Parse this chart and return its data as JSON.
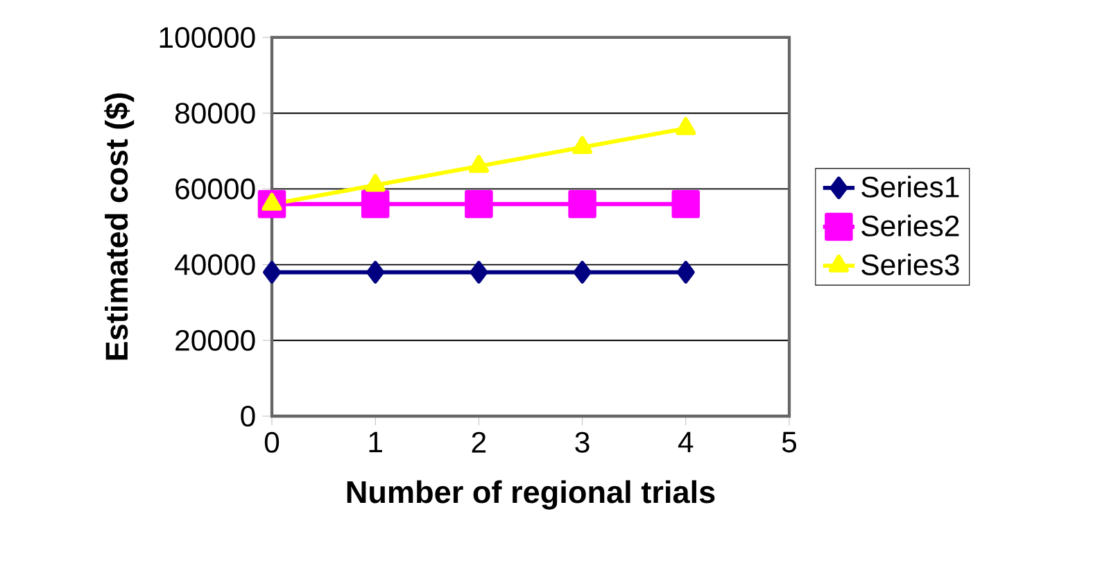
{
  "chart_data": {
    "type": "line",
    "xlabel": "Number of regional trials",
    "ylabel": "Estimated cost ($)",
    "x": [
      0,
      1,
      2,
      3,
      4
    ],
    "xlim": [
      0,
      5
    ],
    "xticks": [
      0,
      1,
      2,
      3,
      4,
      5
    ],
    "ylim": [
      0,
      100000
    ],
    "yticks": [
      0,
      20000,
      40000,
      60000,
      80000,
      100000
    ],
    "grid": "y",
    "legend": "right",
    "series": [
      {
        "name": "Series1",
        "color": "#000080",
        "marker": "diamond",
        "values": [
          38000,
          38000,
          38000,
          38000,
          38000
        ]
      },
      {
        "name": "Series2",
        "color": "#ff00ff",
        "marker": "square",
        "values": [
          56000,
          56000,
          56000,
          56000,
          56000
        ]
      },
      {
        "name": "Series3",
        "color": "#ffff00",
        "marker": "triangle",
        "values": [
          56000,
          61000,
          66000,
          71000,
          76000
        ]
      }
    ]
  }
}
